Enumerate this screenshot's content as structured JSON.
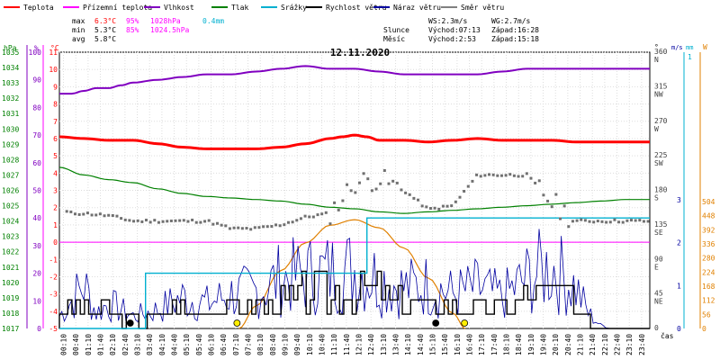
{
  "chart_data": {
    "type": "line",
    "title": "12.11.2020",
    "legend": {
      "position": "top",
      "items": [
        {
          "name": "Teplota",
          "color": "#ff0000"
        },
        {
          "name": "Přízemní teplota",
          "color": "#ff00ff"
        },
        {
          "name": "Vlhkost",
          "color": "#8000c0"
        },
        {
          "name": "Tlak",
          "color": "#008000"
        },
        {
          "name": "Srážky",
          "color": "#00b0d0"
        },
        {
          "name": "Rychlost větru",
          "color": "#000000"
        },
        {
          "name": "Náraz větru",
          "color": "#0000a0"
        },
        {
          "name": "Směr větru",
          "color": "#808080"
        }
      ]
    },
    "stats": {
      "rows": [
        {
          "label": "max",
          "temp": "6.3°C",
          "hum": "95%",
          "press": "1028hPa",
          "rain": "0.4mm"
        },
        {
          "label": "min",
          "temp": "5.3°C",
          "hum": "85%",
          "press": "1024.5hPa",
          "rain": ""
        },
        {
          "label": "avg",
          "temp": "5.8°C",
          "hum": "",
          "press": "",
          "rain": ""
        }
      ],
      "wind": [
        "WS:2.3m/s",
        "WG:2.7m/s"
      ],
      "sun": {
        "label": "Slunce",
        "rise": "Východ:07:13",
        "set": "Západ:16:28"
      },
      "moon": {
        "label": "Měsíc",
        "rise": "Východ:2:53",
        "set": "Západ:15:18"
      }
    },
    "axes": {
      "hpa": {
        "unit": "hPa",
        "ticks": [
          "1035",
          "1034",
          "1033",
          "1032",
          "1031",
          "1030",
          "1029",
          "1028",
          "1027",
          "1026",
          "1025",
          "1024",
          "1023",
          "1022",
          "1021",
          "1020",
          "1019",
          "1018",
          "1017"
        ]
      },
      "percent": {
        "unit": "%",
        "ticks": [
          "100",
          "90",
          "80",
          "70",
          "60",
          "50",
          "40",
          "30",
          "20",
          "10",
          "0"
        ]
      },
      "celsius": {
        "unit": "°C",
        "ticks": [
          "11",
          "10",
          "9",
          "8",
          "7",
          "6",
          "5",
          "4",
          "3",
          "2",
          "1",
          "0",
          "-1",
          "-2",
          "-3",
          "-4",
          "-5"
        ]
      },
      "direction": {
        "unit": "°",
        "ticks": [
          {
            "deg": "360",
            "dir": "N"
          },
          {
            "deg": "315",
            "dir": "NW"
          },
          {
            "deg": "270",
            "dir": "W"
          },
          {
            "deg": "225",
            "dir": "SW"
          },
          {
            "deg": "180",
            "dir": "S"
          },
          {
            "deg": "135",
            "dir": "SE"
          },
          {
            "deg": "90",
            "dir": "E"
          },
          {
            "deg": "45",
            "dir": "NE"
          },
          {
            "deg": "0",
            "dir": ""
          }
        ]
      },
      "ms": {
        "unit": "m/s",
        "ticks": [
          "3",
          "2",
          "1",
          "0"
        ]
      },
      "mm": {
        "unit": "mm",
        "ticks": [
          "1"
        ]
      },
      "wm2": {
        "unit": "W",
        "ticks": [
          "504",
          "448",
          "392",
          "336",
          "280",
          "224",
          "168",
          "112",
          "56",
          "0"
        ]
      },
      "x": {
        "label": "čas",
        "ticks": [
          "00:10",
          "00:40",
          "01:10",
          "01:40",
          "02:10",
          "02:40",
          "03:10",
          "03:40",
          "04:10",
          "04:40",
          "05:10",
          "05:40",
          "06:10",
          "06:40",
          "07:10",
          "07:40",
          "08:10",
          "08:40",
          "09:10",
          "09:40",
          "10:10",
          "10:40",
          "11:10",
          "11:40",
          "12:10",
          "12:40",
          "13:10",
          "13:40",
          "14:10",
          "14:40",
          "15:10",
          "15:40",
          "16:10",
          "16:40",
          "17:10",
          "17:40",
          "18:10",
          "18:40",
          "19:10",
          "19:40",
          "20:10",
          "20:40",
          "21:10",
          "21:40",
          "22:10",
          "22:40",
          "23:10",
          "23:40"
        ]
      }
    },
    "series": {
      "temperature_c": [
        [
          0,
          6.1
        ],
        [
          1,
          6.0
        ],
        [
          2,
          5.9
        ],
        [
          3,
          5.9
        ],
        [
          4,
          5.7
        ],
        [
          5,
          5.5
        ],
        [
          6,
          5.4
        ],
        [
          7,
          5.4
        ],
        [
          8,
          5.4
        ],
        [
          9,
          5.5
        ],
        [
          10,
          5.7
        ],
        [
          11,
          6.0
        ],
        [
          11.5,
          6.1
        ],
        [
          12,
          6.2
        ],
        [
          12.5,
          6.1
        ],
        [
          13,
          5.9
        ],
        [
          14,
          5.9
        ],
        [
          15,
          5.8
        ],
        [
          16,
          5.9
        ],
        [
          17,
          6.0
        ],
        [
          18,
          5.9
        ],
        [
          19,
          5.9
        ],
        [
          20,
          5.9
        ],
        [
          21,
          5.8
        ],
        [
          22,
          5.8
        ],
        [
          23,
          5.8
        ],
        [
          24,
          5.8
        ]
      ],
      "humidity_pct": [
        [
          0,
          85
        ],
        [
          0.5,
          85
        ],
        [
          1,
          86
        ],
        [
          1.5,
          87
        ],
        [
          2,
          87
        ],
        [
          2.5,
          88
        ],
        [
          3,
          89
        ],
        [
          4,
          90
        ],
        [
          5,
          91
        ],
        [
          6,
          92
        ],
        [
          7,
          92
        ],
        [
          8,
          93
        ],
        [
          9,
          94
        ],
        [
          10,
          95
        ],
        [
          11,
          94
        ],
        [
          12,
          94
        ],
        [
          13,
          93
        ],
        [
          14,
          92
        ],
        [
          15,
          92
        ],
        [
          16,
          92
        ],
        [
          17,
          92
        ],
        [
          18,
          93
        ],
        [
          19,
          94
        ],
        [
          20,
          94
        ],
        [
          21,
          94
        ],
        [
          22,
          94
        ],
        [
          23,
          94
        ],
        [
          24,
          94
        ]
      ],
      "pressure_hpa": [
        [
          0,
          1027.5
        ],
        [
          1,
          1027.0
        ],
        [
          2,
          1026.7
        ],
        [
          3,
          1026.5
        ],
        [
          4,
          1026.1
        ],
        [
          5,
          1025.8
        ],
        [
          6,
          1025.6
        ],
        [
          7,
          1025.5
        ],
        [
          8,
          1025.4
        ],
        [
          9,
          1025.3
        ],
        [
          10,
          1025.1
        ],
        [
          11,
          1024.9
        ],
        [
          12,
          1024.8
        ],
        [
          13,
          1024.6
        ],
        [
          14,
          1024.5
        ],
        [
          15,
          1024.6
        ],
        [
          16,
          1024.7
        ],
        [
          17,
          1024.8
        ],
        [
          18,
          1024.9
        ],
        [
          19,
          1025.0
        ],
        [
          20,
          1025.1
        ],
        [
          21,
          1025.2
        ],
        [
          22,
          1025.3
        ],
        [
          23,
          1025.4
        ],
        [
          24,
          1025.4
        ]
      ],
      "ground_temp_c": [
        [
          0,
          0
        ],
        [
          24,
          0
        ]
      ],
      "rain_mm": [
        [
          0,
          0
        ],
        [
          3.5,
          0
        ],
        [
          3.5,
          0.2
        ],
        [
          12.5,
          0.2
        ],
        [
          12.5,
          0.4
        ],
        [
          24,
          0.4
        ]
      ],
      "solar_wm2": [
        [
          7.3,
          0
        ],
        [
          8,
          90
        ],
        [
          9,
          230
        ],
        [
          10,
          340
        ],
        [
          11,
          410
        ],
        [
          12,
          432
        ],
        [
          13,
          400
        ],
        [
          14,
          320
        ],
        [
          15,
          200
        ],
        [
          16,
          60
        ],
        [
          16.5,
          0
        ]
      ],
      "wind_avg_ms": [
        [
          0,
          0.3
        ],
        [
          1,
          0.5
        ],
        [
          2,
          0.4
        ],
        [
          3,
          0.2
        ],
        [
          4,
          0.3
        ],
        [
          5,
          0.5
        ],
        [
          6,
          0.4
        ],
        [
          7,
          0.5
        ],
        [
          8,
          0.5
        ],
        [
          9,
          0.6
        ],
        [
          10,
          0.8
        ],
        [
          11,
          0.8
        ],
        [
          12,
          0.9
        ],
        [
          13,
          0.8
        ],
        [
          14,
          0.6
        ],
        [
          15,
          0.5
        ],
        [
          16,
          0.6
        ],
        [
          17,
          0.5
        ],
        [
          18,
          0.5
        ],
        [
          19,
          0.8
        ],
        [
          20,
          0.9
        ],
        [
          21,
          0.5
        ],
        [
          22,
          0.1
        ],
        [
          23,
          0
        ],
        [
          24,
          0
        ]
      ],
      "wind_gust_ms": [
        [
          0,
          0.4
        ],
        [
          1,
          1.4
        ],
        [
          1.5,
          0.5
        ],
        [
          2,
          0.8
        ],
        [
          3,
          0.4
        ],
        [
          4,
          0.6
        ],
        [
          5,
          1.0
        ],
        [
          6,
          0.8
        ],
        [
          7,
          1.1
        ],
        [
          8,
          1.2
        ],
        [
          9,
          1.6
        ],
        [
          10,
          1.7
        ],
        [
          11,
          1.8
        ],
        [
          12,
          1.9
        ],
        [
          13,
          1.6
        ],
        [
          14,
          1.3
        ],
        [
          15,
          1.4
        ],
        [
          16,
          1.1
        ],
        [
          17,
          1.3
        ],
        [
          18,
          1.0
        ],
        [
          19,
          1.6
        ],
        [
          20,
          2.0
        ],
        [
          21,
          1.3
        ],
        [
          21.5,
          0.5
        ],
        [
          22,
          0.1
        ],
        [
          23,
          0
        ],
        [
          24,
          0
        ]
      ],
      "wind_dir_deg": [
        [
          0,
          155
        ],
        [
          0.5,
          150
        ],
        [
          1,
          150
        ],
        [
          2,
          147
        ],
        [
          3,
          140
        ],
        [
          4,
          140
        ],
        [
          5,
          140
        ],
        [
          6,
          140
        ],
        [
          7,
          130
        ],
        [
          8,
          130
        ],
        [
          9,
          135
        ],
        [
          10,
          145
        ],
        [
          11,
          150
        ],
        [
          12,
          190
        ],
        [
          13,
          195
        ],
        [
          14,
          180
        ],
        [
          15,
          155
        ],
        [
          16,
          160
        ],
        [
          17,
          200
        ],
        [
          18,
          200
        ],
        [
          19,
          200
        ],
        [
          20,
          165
        ],
        [
          21,
          140
        ],
        [
          22,
          140
        ],
        [
          23,
          140
        ],
        [
          24,
          140
        ]
      ],
      "markers": [
        {
          "type": "moon-rise",
          "hour": 2.88
        },
        {
          "type": "sun-rise",
          "hour": 7.22
        },
        {
          "type": "moon-set",
          "hour": 15.3
        },
        {
          "type": "sun-set",
          "hour": 16.47
        }
      ]
    }
  }
}
